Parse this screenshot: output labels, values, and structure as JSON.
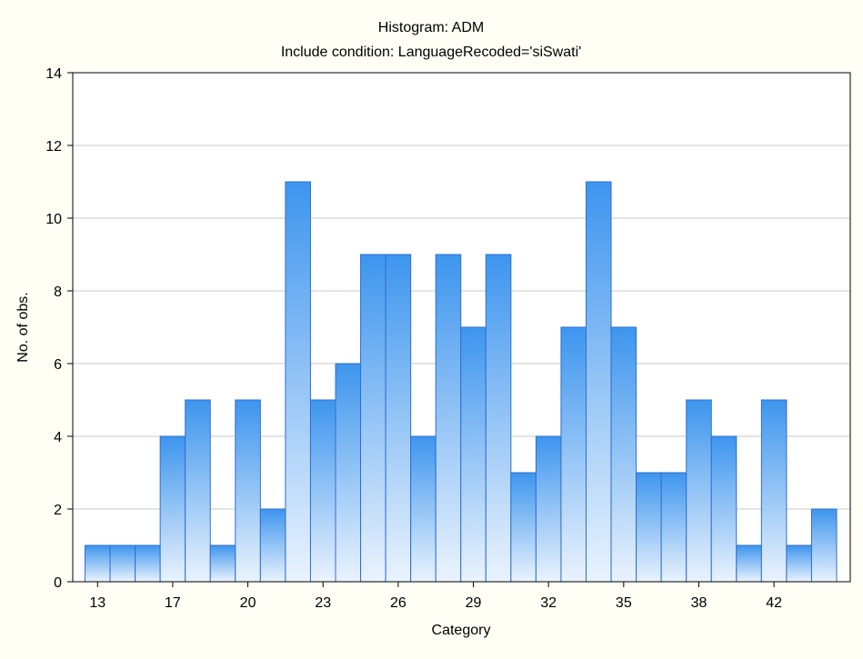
{
  "chart_data": {
    "type": "bar",
    "title": "Histogram: ADM",
    "subtitle": "Include condition: LanguageRecoded='siSwati'",
    "xlabel": "Category",
    "ylabel": "No. of obs.",
    "ylim": [
      0,
      14
    ],
    "y_ticks": [
      "0",
      "2",
      "4",
      "6",
      "8",
      "10",
      "12",
      "14"
    ],
    "x_ticks": [
      {
        "label": "13",
        "bin_index": 0.5
      },
      {
        "label": "17",
        "bin_index": 3.5
      },
      {
        "label": "20",
        "bin_index": 6.5
      },
      {
        "label": "23",
        "bin_index": 9.5
      },
      {
        "label": "26",
        "bin_index": 12.5
      },
      {
        "label": "29",
        "bin_index": 15.5
      },
      {
        "label": "32",
        "bin_index": 18.5
      },
      {
        "label": "35",
        "bin_index": 21.5
      },
      {
        "label": "38",
        "bin_index": 24.5
      },
      {
        "label": "42",
        "bin_index": 27.5
      }
    ],
    "values": [
      1,
      1,
      1,
      4,
      5,
      1,
      5,
      2,
      11,
      5,
      6,
      9,
      9,
      4,
      9,
      7,
      9,
      3,
      4,
      7,
      11,
      7,
      3,
      3,
      5,
      4,
      1,
      5,
      1,
      2
    ],
    "grid": true,
    "legend": "none",
    "colors": {
      "background": "#fffff5",
      "plot_background": "#ffffff",
      "bar_top": "#3d95ee",
      "bar_bottom": "#eaf3fd",
      "bar_edge": "#2f6fd0",
      "grid": "#c8c8c8",
      "axis": "#000000"
    }
  }
}
